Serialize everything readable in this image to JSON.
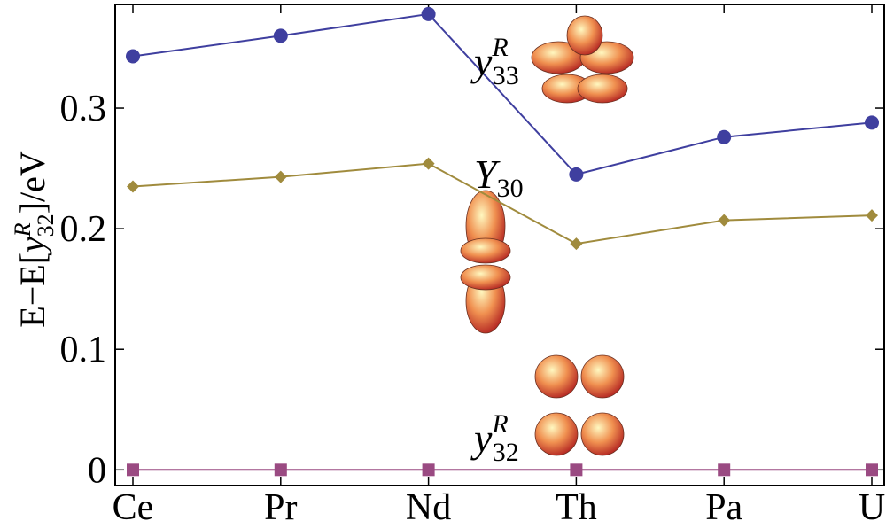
{
  "chart_data": {
    "type": "line",
    "categories": [
      "Ce",
      "Pr",
      "Nd",
      "Th",
      "Pa",
      "U"
    ],
    "series": [
      {
        "color": "#3f3f9f",
        "marker": "circle",
        "values": [
          0.343,
          0.36,
          0.378,
          0.245,
          0.276,
          0.288
        ]
      },
      {
        "color": "#a08b3d",
        "marker": "diamond",
        "values": [
          0.235,
          0.243,
          0.254,
          0.1875,
          0.207,
          0.211
        ]
      },
      {
        "color": "#9a4a82",
        "marker": "square",
        "values": [
          0,
          0,
          0,
          0,
          0,
          0
        ]
      }
    ],
    "ylim": [
      -0.013,
      0.386
    ],
    "yticks": [
      0,
      0.1,
      0.2,
      0.3
    ],
    "y_label": {
      "pre": "E−E[",
      "var": "y",
      "sup": "R",
      "sub": "32",
      "post": "]/eV"
    },
    "annotations": [
      {
        "var": "y",
        "sup": "R",
        "sub": "33"
      },
      {
        "var": "Y",
        "sub": "30"
      },
      {
        "var": "y",
        "sup": "R",
        "sub": "32"
      }
    ]
  }
}
